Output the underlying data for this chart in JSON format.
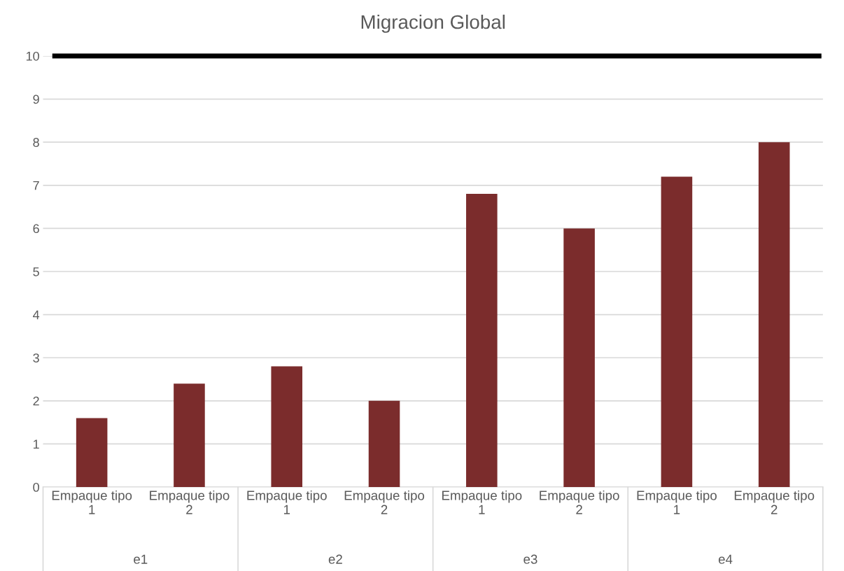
{
  "chart_data": {
    "type": "bar",
    "title": "Migracion Global",
    "categories": [
      "Empaque tipo 1",
      "Empaque tipo 2",
      "Empaque tipo 1",
      "Empaque tipo 2",
      "Empaque tipo 1",
      "Empaque tipo 2",
      "Empaque tipo 1",
      "Empaque tipo 2"
    ],
    "values": [
      1.6,
      2.4,
      2.8,
      2.0,
      6.8,
      6.0,
      7.2,
      8.0
    ],
    "color": "#7b2c2c",
    "annotations": [
      "e1",
      "e2",
      "e3",
      "e4"
    ],
    "ylim": [
      0,
      10
    ],
    "yticks": [
      0,
      1,
      2,
      3,
      4,
      5,
      6,
      7,
      8,
      9,
      10
    ],
    "grid": "y",
    "ref_lines": [
      {
        "axis": "y",
        "value": 10,
        "color": "#000000"
      }
    ]
  }
}
